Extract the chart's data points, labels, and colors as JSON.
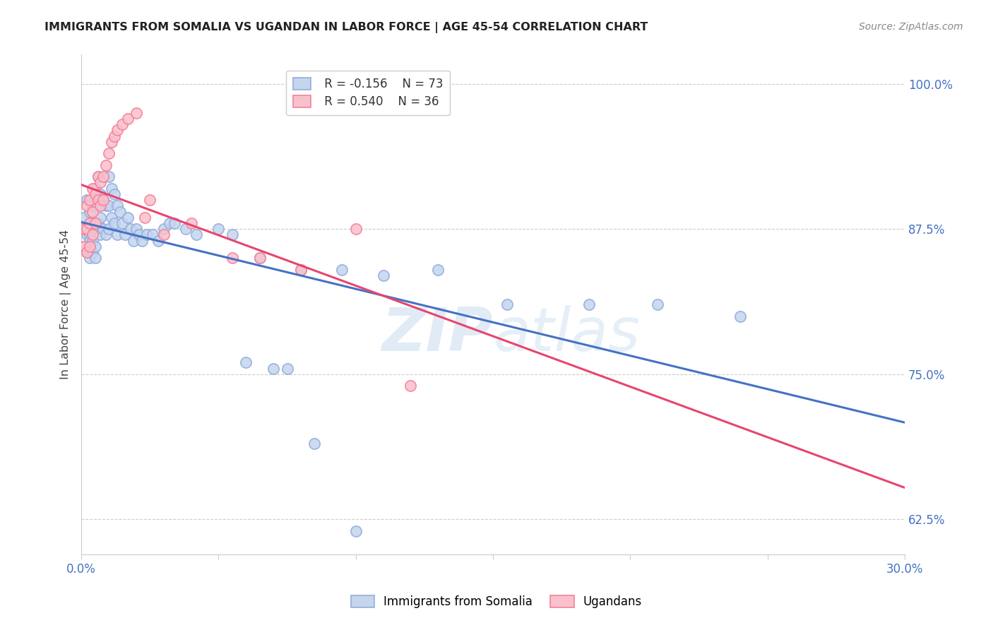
{
  "title": "IMMIGRANTS FROM SOMALIA VS UGANDAN IN LABOR FORCE | AGE 45-54 CORRELATION CHART",
  "source": "Source: ZipAtlas.com",
  "ylabel": "In Labor Force | Age 45-54",
  "xlim": [
    0.0,
    0.3
  ],
  "ylim": [
    0.595,
    1.025
  ],
  "yticks": [
    0.625,
    0.75,
    0.875,
    1.0
  ],
  "ytick_labels": [
    "62.5%",
    "75.0%",
    "87.5%",
    "100.0%"
  ],
  "xticks": [
    0.0,
    0.05,
    0.1,
    0.15,
    0.2,
    0.25,
    0.3
  ],
  "xtick_labels": [
    "0.0%",
    "",
    "",
    "",
    "",
    "",
    "30.0%"
  ],
  "legend_r1": "R = -0.156",
  "legend_n1": "N = 73",
  "legend_r2": "R = 0.540",
  "legend_n2": "N = 36",
  "blue_color": "#92AEDD",
  "pink_color": "#F4819A",
  "blue_line_color": "#4472C4",
  "pink_line_color": "#E8456E",
  "title_color": "#222222",
  "source_color": "#888888",
  "ytick_color": "#4472C4",
  "xtick_color": "#4472C4",
  "watermark_zip": "ZIP",
  "watermark_atlas": "atlas",
  "somalia_x": [
    0.001,
    0.001,
    0.001,
    0.002,
    0.002,
    0.002,
    0.002,
    0.003,
    0.003,
    0.003,
    0.003,
    0.003,
    0.004,
    0.004,
    0.004,
    0.004,
    0.005,
    0.005,
    0.005,
    0.005,
    0.005,
    0.006,
    0.006,
    0.006,
    0.007,
    0.007,
    0.007,
    0.008,
    0.008,
    0.009,
    0.009,
    0.01,
    0.01,
    0.01,
    0.011,
    0.011,
    0.012,
    0.012,
    0.013,
    0.013,
    0.014,
    0.015,
    0.016,
    0.017,
    0.018,
    0.019,
    0.02,
    0.021,
    0.022,
    0.024,
    0.026,
    0.028,
    0.03,
    0.032,
    0.034,
    0.038,
    0.042,
    0.05,
    0.055,
    0.065,
    0.08,
    0.095,
    0.11,
    0.13,
    0.155,
    0.185,
    0.21,
    0.24,
    0.06,
    0.07,
    0.075,
    0.085,
    0.1
  ],
  "somalia_y": [
    0.875,
    0.885,
    0.86,
    0.9,
    0.875,
    0.855,
    0.87,
    0.89,
    0.88,
    0.87,
    0.865,
    0.85,
    0.895,
    0.88,
    0.865,
    0.855,
    0.91,
    0.895,
    0.875,
    0.86,
    0.85,
    0.92,
    0.9,
    0.88,
    0.905,
    0.885,
    0.87,
    0.9,
    0.875,
    0.895,
    0.87,
    0.92,
    0.895,
    0.875,
    0.91,
    0.885,
    0.905,
    0.88,
    0.895,
    0.87,
    0.89,
    0.88,
    0.87,
    0.885,
    0.875,
    0.865,
    0.875,
    0.87,
    0.865,
    0.87,
    0.87,
    0.865,
    0.875,
    0.88,
    0.88,
    0.875,
    0.87,
    0.875,
    0.87,
    0.85,
    0.84,
    0.84,
    0.835,
    0.84,
    0.81,
    0.81,
    0.81,
    0.8,
    0.76,
    0.755,
    0.755,
    0.69,
    0.615
  ],
  "uganda_x": [
    0.001,
    0.001,
    0.002,
    0.002,
    0.002,
    0.003,
    0.003,
    0.003,
    0.004,
    0.004,
    0.004,
    0.005,
    0.005,
    0.006,
    0.006,
    0.007,
    0.007,
    0.008,
    0.008,
    0.009,
    0.01,
    0.011,
    0.012,
    0.013,
    0.015,
    0.017,
    0.02,
    0.023,
    0.025,
    0.03,
    0.04,
    0.055,
    0.065,
    0.08,
    0.1,
    0.12
  ],
  "uganda_y": [
    0.875,
    0.86,
    0.895,
    0.875,
    0.855,
    0.9,
    0.88,
    0.86,
    0.91,
    0.89,
    0.87,
    0.905,
    0.88,
    0.92,
    0.9,
    0.915,
    0.895,
    0.92,
    0.9,
    0.93,
    0.94,
    0.95,
    0.955,
    0.96,
    0.965,
    0.97,
    0.975,
    0.885,
    0.9,
    0.87,
    0.88,
    0.85,
    0.85,
    0.84,
    0.875,
    0.74
  ]
}
